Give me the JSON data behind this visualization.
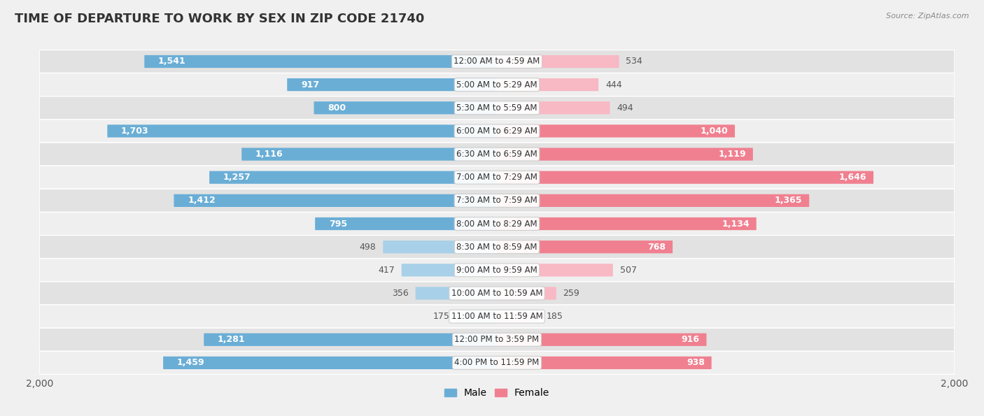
{
  "title": "TIME OF DEPARTURE TO WORK BY SEX IN ZIP CODE 21740",
  "source": "Source: ZipAtlas.com",
  "categories": [
    "12:00 AM to 4:59 AM",
    "5:00 AM to 5:29 AM",
    "5:30 AM to 5:59 AM",
    "6:00 AM to 6:29 AM",
    "6:30 AM to 6:59 AM",
    "7:00 AM to 7:29 AM",
    "7:30 AM to 7:59 AM",
    "8:00 AM to 8:29 AM",
    "8:30 AM to 8:59 AM",
    "9:00 AM to 9:59 AM",
    "10:00 AM to 10:59 AM",
    "11:00 AM to 11:59 AM",
    "12:00 PM to 3:59 PM",
    "4:00 PM to 11:59 PM"
  ],
  "male_values": [
    1541,
    917,
    800,
    1703,
    1116,
    1257,
    1412,
    795,
    498,
    417,
    356,
    175,
    1281,
    1459
  ],
  "female_values": [
    534,
    444,
    494,
    1040,
    1119,
    1646,
    1365,
    1134,
    768,
    507,
    259,
    185,
    916,
    938
  ],
  "male_color": "#6aaed6",
  "female_color": "#f08090",
  "male_color_light": "#a8d0e8",
  "female_color_light": "#f8b8c4",
  "bg_color": "#f0f0f0",
  "row_color_dark": "#e2e2e2",
  "row_color_light": "#efefef",
  "max_val": 2000,
  "bar_height": 0.55,
  "title_fontsize": 13,
  "label_fontsize": 9,
  "category_fontsize": 8.5,
  "axis_label_fontsize": 10,
  "inside_label_threshold": 600
}
